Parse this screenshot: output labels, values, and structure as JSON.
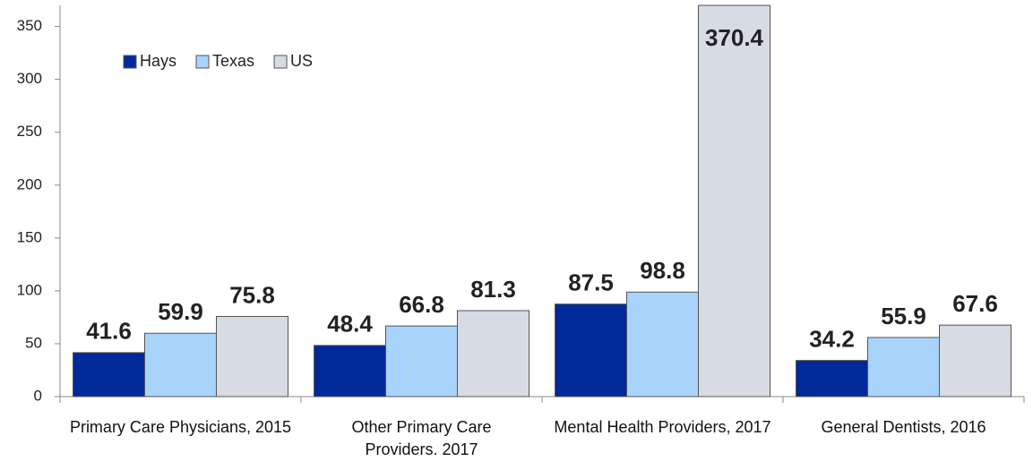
{
  "chart_data": {
    "type": "bar",
    "categories": [
      "Primary Care Physicians, 2015",
      "Other Primary Care Providers. 2017",
      "Mental Health Providers, 2017",
      "General Dentists, 2016"
    ],
    "series": [
      {
        "name": "Hays",
        "color": "#00299a",
        "values": [
          41.6,
          48.4,
          87.5,
          34.2
        ]
      },
      {
        "name": "Texas",
        "color": "#a8d3fa",
        "values": [
          59.9,
          66.8,
          98.8,
          55.9
        ]
      },
      {
        "name": "US",
        "color": "#d7dbe3",
        "values": [
          75.8,
          81.3,
          370.4,
          67.6
        ]
      }
    ],
    "ylim": [
      0,
      370
    ],
    "yticks": [
      0,
      50,
      100,
      150,
      200,
      250,
      300,
      350
    ],
    "grid": false,
    "legend": "top-left"
  }
}
